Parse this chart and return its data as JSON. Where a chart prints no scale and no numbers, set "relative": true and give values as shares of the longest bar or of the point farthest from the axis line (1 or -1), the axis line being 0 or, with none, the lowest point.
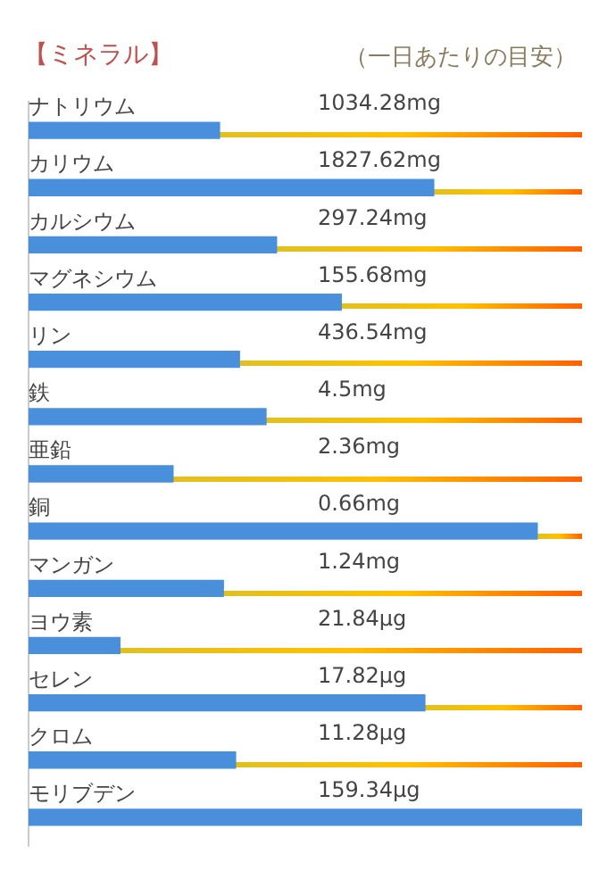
{
  "chart_data": {
    "type": "bar",
    "orientation": "horizontal",
    "relative": true,
    "title": "【ミネラル】",
    "subtitle": "（一日あたりの目安）",
    "categories": [
      "ナトリウム",
      "カリウム",
      "カルシウム",
      "マグネシウム",
      "リン",
      "鉄",
      "亜鉛",
      "銅",
      "マンガン",
      "ヨウ素",
      "セレン",
      "クロム",
      "モリブデン"
    ],
    "series": [
      {
        "color": "#4a8fdb",
        "values": [
          0.345,
          0.732,
          0.448,
          0.565,
          0.381,
          0.429,
          0.261,
          0.919,
          0.352,
          0.165,
          0.716,
          0.374,
          1
        ]
      }
    ],
    "annotations": [
      "1034.28mg",
      "1827.62mg",
      "297.24mg",
      "155.68mg",
      "436.54mg",
      "4.5mg",
      "2.36mg",
      "0.66mg",
      "1.24mg",
      "21.84μg",
      "17.82μg",
      "11.28μg",
      "159.34μg"
    ]
  }
}
